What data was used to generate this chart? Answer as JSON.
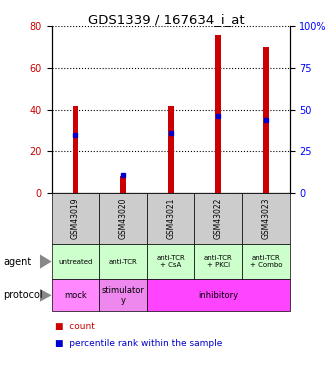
{
  "title": "GDS1339 / 167634_i_at",
  "samples": [
    "GSM43019",
    "GSM43020",
    "GSM43021",
    "GSM43022",
    "GSM43023"
  ],
  "count_values": [
    42,
    8,
    42,
    76,
    70
  ],
  "percentile_values": [
    35,
    11,
    36,
    46,
    44
  ],
  "ylim_left": [
    0,
    80
  ],
  "ylim_right": [
    0,
    100
  ],
  "yticks_left": [
    0,
    20,
    40,
    60,
    80
  ],
  "yticks_right": [
    0,
    25,
    50,
    75,
    100
  ],
  "bar_color": "#cc0000",
  "percentile_color": "#0000cc",
  "agent_labels": [
    "untreated",
    "anti-TCR",
    "anti-TCR\n+ CsA",
    "anti-TCR\n+ PKCi",
    "anti-TCR\n+ Combo"
  ],
  "agent_color": "#ccffcc",
  "protocol_spans": [
    [
      0,
      1,
      "mock",
      "#ff88ff"
    ],
    [
      1,
      2,
      "stimulator\ny",
      "#ee88ee"
    ],
    [
      2,
      5,
      "inhibitory",
      "#ff44ff"
    ]
  ],
  "sample_bg_color": "#cccccc",
  "background_color": "#ffffff"
}
